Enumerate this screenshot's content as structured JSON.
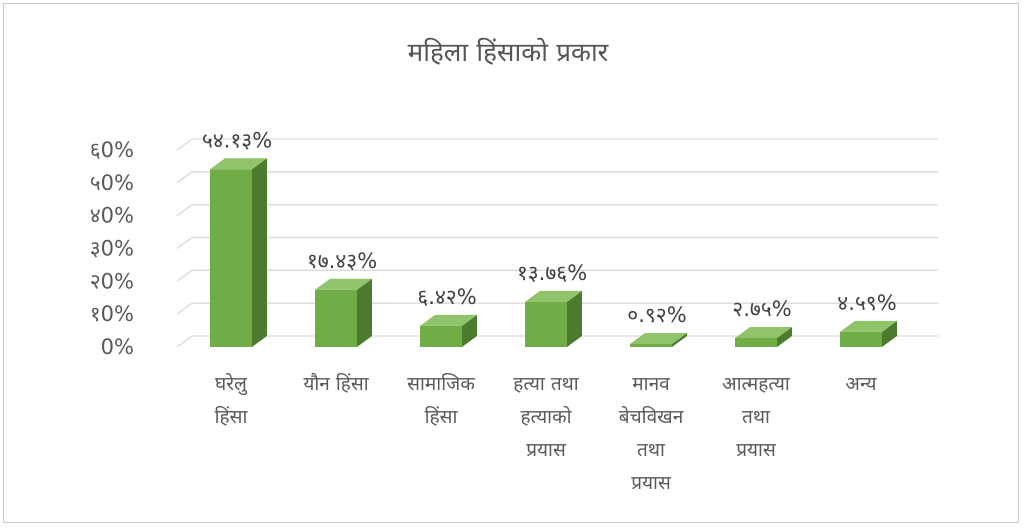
{
  "chart_data": {
    "type": "bar",
    "title": "महिला हिंसाको प्रकार",
    "categories": [
      [
        "घरेलु",
        "हिंसा"
      ],
      [
        "यौन  हिंसा"
      ],
      [
        "सामाजिक",
        "हिंसा"
      ],
      [
        "हत्या  तथा",
        "हत्याको",
        "प्रयास"
      ],
      [
        "मानव",
        "बेचविखन",
        "तथा",
        "प्रयास"
      ],
      [
        "आत्महत्या",
        "तथा",
        "प्रयास"
      ],
      [
        "अन्य"
      ]
    ],
    "values": [
      54.13,
      17.43,
      6.42,
      13.76,
      0.92,
      2.75,
      4.59
    ],
    "data_labels": [
      "५४.१३%",
      "१७.४३%",
      "६.४२%",
      "१३.७६%",
      "०.९२%",
      "२.७५%",
      "४.५९%"
    ],
    "ytick_labels": [
      "0%",
      "१0%",
      "२0%",
      "३0%",
      "४0%",
      "५0%",
      "६0%"
    ],
    "ylim": [
      0,
      60
    ],
    "xlabel": "",
    "ylabel": "",
    "grid": true,
    "legend": false,
    "style": "3d-bar"
  },
  "colors": {
    "bar_front": "#70ad47",
    "bar_side": "#4c7a2f",
    "bar_top": "#8fc46a",
    "grid": "#d9d9d9"
  }
}
